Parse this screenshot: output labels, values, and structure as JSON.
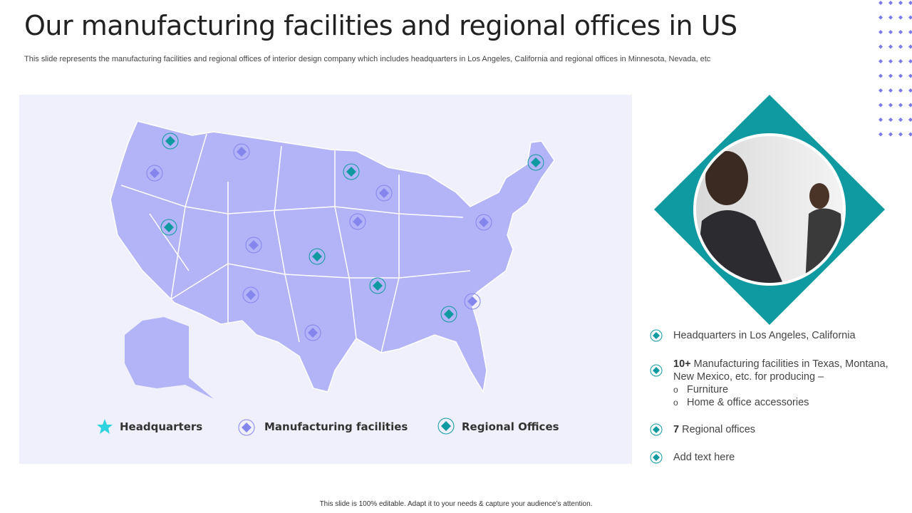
{
  "header": {
    "title": "Our manufacturing facilities and regional offices in US",
    "subtitle": "This slide represents the manufacturing facilities and regional offices of interior design company which includes headquarters in Los Angeles, California and regional offices in Minnesota, Nevada, etc"
  },
  "legend": [
    "Headquarters",
    "Manufacturing facilities",
    "Regional Offices"
  ],
  "bullets": [
    {
      "text": "Headquarters in Los Angeles, California"
    },
    {
      "bold": "10+",
      "text": " Manufacturing facilities in Texas, Montana, New Mexico, etc. for producing –",
      "items": [
        "Furniture",
        "Home & office accessories"
      ]
    },
    {
      "bold": "7",
      "text": " Regional offices"
    },
    {
      "text": "Add text here"
    }
  ],
  "footer": "This slide is 100% editable.  Adapt it to your needs & capture your audience’s attention."
}
